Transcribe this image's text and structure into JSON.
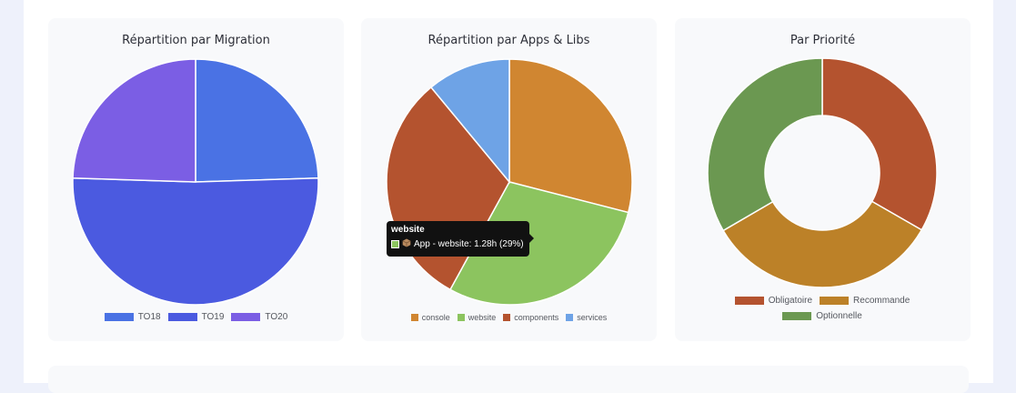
{
  "colors": {
    "to18": "#4a72e4",
    "to19": "#4b5ae0",
    "to20": "#7b5ee4",
    "console": "#d08631",
    "website": "#8cc45f",
    "components": "#b4532f",
    "services": "#6ea3e6",
    "obligatoire": "#b4532f",
    "recommande": "#bc8128",
    "optionnelle": "#6b9851"
  },
  "cards": {
    "migration": {
      "title": "Répartition par Migration"
    },
    "apps": {
      "title": "Répartition par Apps & Libs"
    },
    "priority": {
      "title": "Par Priorité"
    }
  },
  "chart_data": [
    {
      "type": "pie",
      "title": "Répartition par Migration",
      "labels": [
        "TO18",
        "TO19",
        "TO20"
      ],
      "values": [
        24.5,
        51,
        24.5
      ],
      "legend": "bottom"
    },
    {
      "type": "pie",
      "title": "Répartition par Apps & Libs",
      "labels": [
        "console",
        "website",
        "components",
        "services"
      ],
      "values": [
        29,
        29,
        31,
        11
      ],
      "legend": "bottom",
      "tooltip": {
        "title": "website",
        "icon": "package-icon",
        "label": "App - website: 1.28h (29%)"
      }
    },
    {
      "type": "doughnut",
      "title": "Par Priorité",
      "labels": [
        "Obligatoire",
        "Recommande",
        "Optionnelle"
      ],
      "values": [
        33.3,
        33.3,
        33.4
      ],
      "legend": "bottom"
    }
  ]
}
